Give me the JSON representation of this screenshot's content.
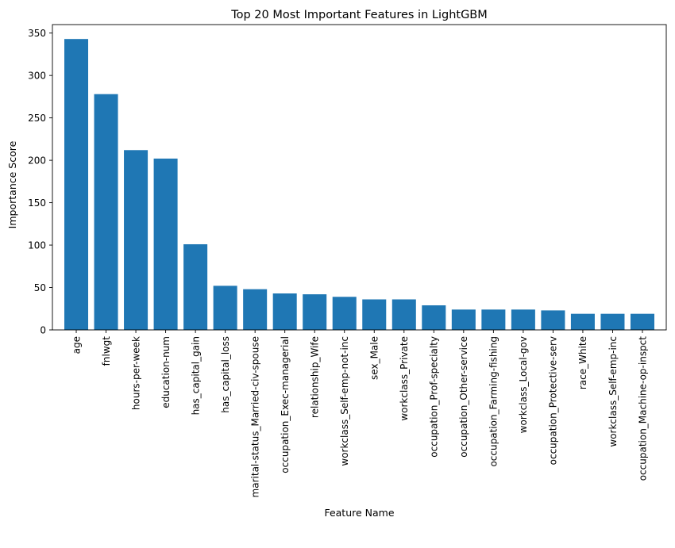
{
  "chart_data": {
    "type": "bar",
    "title": "Top 20 Most Important Features in LightGBM",
    "xlabel": "Feature Name",
    "ylabel": "Importance Score",
    "ylim": [
      0,
      360
    ],
    "yticks": [
      0,
      50,
      100,
      150,
      200,
      250,
      300,
      350
    ],
    "grid": false,
    "bar_color": "#1f77b4",
    "categories": [
      "age",
      "fnlwgt",
      "hours-per-week",
      "education-num",
      "has_capital_gain",
      "has_capital_loss",
      "marital-status_Married-civ-spouse",
      "occupation_Exec-managerial",
      "relationship_Wife",
      "workclass_Self-emp-not-inc",
      "sex_Male",
      "workclass_Private",
      "occupation_Prof-specialty",
      "occupation_Other-service",
      "occupation_Farming-fishing",
      "workclass_Local-gov",
      "occupation_Protective-serv",
      "race_White",
      "workclass_Self-emp-inc",
      "occupation_Machine-op-inspct"
    ],
    "values": [
      343,
      278,
      212,
      202,
      101,
      52,
      48,
      43,
      42,
      39,
      36,
      36,
      29,
      24,
      24,
      24,
      23,
      19,
      19,
      19
    ]
  }
}
